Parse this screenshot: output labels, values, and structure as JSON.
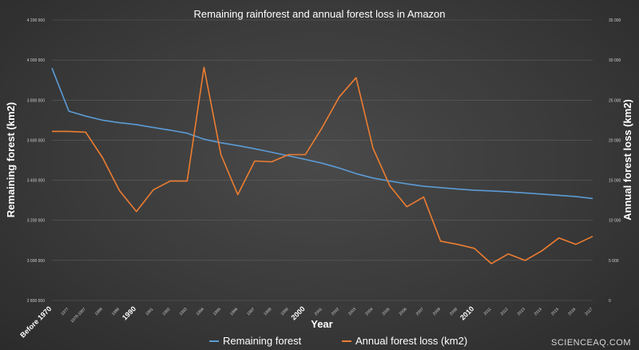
{
  "source_watermark": "SCIENCEAQ.COM",
  "chart_data": {
    "type": "line",
    "title": "Remaining rainforest and annual forest loss in Amazon",
    "xlabel": "Year",
    "ylabel_left": "Remaining forest (km2)",
    "ylabel_right": "Annual forest loss (km2)",
    "ylim_left": [
      2800000,
      4200000
    ],
    "ylim_right": [
      0,
      35000
    ],
    "yticks_left": [
      "2 800 000",
      "3 000 000",
      "3 200 000",
      "3 400 000",
      "3 600 000",
      "3 800 000",
      "4 000 000",
      "4 200 000"
    ],
    "yticks_right": [
      "0",
      "5 000",
      "10 000",
      "15 000",
      "20 000",
      "25 000",
      "30 000",
      "35 000"
    ],
    "categories": [
      "Before 1970",
      "1977",
      "1978-1987",
      "1988",
      "1989",
      "1990",
      "1991",
      "1992",
      "1993",
      "1994",
      "1995",
      "1996",
      "1997",
      "1998",
      "1999",
      "2000",
      "2001",
      "2002",
      "2003",
      "2004",
      "2005",
      "2006",
      "2007",
      "2008",
      "2009",
      "2010",
      "2011",
      "2012",
      "2013",
      "2014",
      "2015",
      "2016",
      "2017"
    ],
    "major_ticks": [
      "Before 1970",
      "1990",
      "2000",
      "2010"
    ],
    "legend_position": "bottom",
    "grid": true,
    "series": [
      {
        "name": "Remaining forest",
        "axis": "left",
        "color": "#5b9bd5",
        "values": [
          3960000,
          3745000,
          3720000,
          3700000,
          3687000,
          3678000,
          3663000,
          3650000,
          3635000,
          3605000,
          3587000,
          3573000,
          3557000,
          3540000,
          3522000,
          3504000,
          3485000,
          3461000,
          3433000,
          3411000,
          3396000,
          3382000,
          3370000,
          3363000,
          3356000,
          3350000,
          3347000,
          3342000,
          3337000,
          3331000,
          3325000,
          3319000,
          3309000
        ]
      },
      {
        "name": "Annual forest loss (km2)",
        "axis": "right",
        "color": "#ed7d31",
        "values": [
          21100,
          21100,
          21000,
          17800,
          13700,
          11100,
          13800,
          14900,
          14900,
          29100,
          18200,
          13200,
          17400,
          17300,
          18200,
          18200,
          21600,
          25400,
          27800,
          19000,
          14300,
          11700,
          12900,
          7400,
          7000,
          6500,
          4600,
          5800,
          5000,
          6200,
          7800,
          7000,
          8000
        ]
      }
    ]
  }
}
